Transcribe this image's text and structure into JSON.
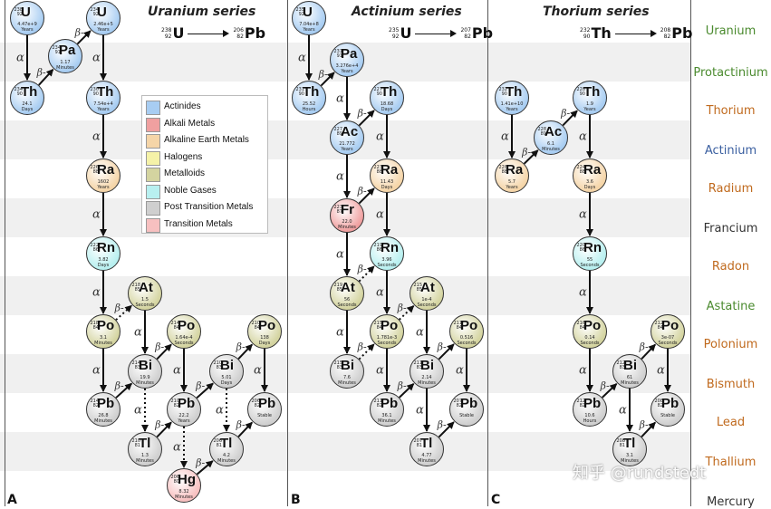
{
  "panels": [
    {
      "letter": "A",
      "title": "Uranium series",
      "eq": {
        "parent": {
          "sym": "U",
          "mass": "238",
          "num": "92"
        },
        "daughter": {
          "sym": "Pb",
          "mass": "206",
          "num": "82"
        }
      }
    },
    {
      "letter": "B",
      "title": "Actinium series",
      "eq": {
        "parent": {
          "sym": "U",
          "mass": "235",
          "num": "92"
        },
        "daughter": {
          "sym": "Pb",
          "mass": "207",
          "num": "82"
        }
      }
    },
    {
      "letter": "C",
      "title": "Thorium series",
      "eq": {
        "parent": {
          "sym": "Th",
          "mass": "232",
          "num": "90"
        },
        "daughter": {
          "sym": "Pb",
          "mass": "208",
          "num": "82"
        }
      }
    }
  ],
  "elements": [
    {
      "name": "Uranium",
      "color": "#4a8a2e"
    },
    {
      "name": "Protactinium",
      "color": "#4a8a2e"
    },
    {
      "name": "Thorium",
      "color": "#c06a1e"
    },
    {
      "name": "Actinium",
      "color": "#3a5fa0"
    },
    {
      "name": "Radium",
      "color": "#c06a1e"
    },
    {
      "name": "Francium",
      "color": "#333333"
    },
    {
      "name": "Radon",
      "color": "#c06a1e"
    },
    {
      "name": "Astatine",
      "color": "#4a8a2e"
    },
    {
      "name": "Polonium",
      "color": "#c06a1e"
    },
    {
      "name": "Bismuth",
      "color": "#c06a1e"
    },
    {
      "name": "Lead",
      "color": "#c06a1e"
    },
    {
      "name": "Thallium",
      "color": "#c06a1e"
    },
    {
      "name": "Mercury",
      "color": "#333333"
    }
  ],
  "legend": [
    {
      "label": "Actinides",
      "color": "#a8cdf2"
    },
    {
      "label": "Alkali Metals",
      "color": "#f0a0a0"
    },
    {
      "label": "Alkaline Earth Metals",
      "color": "#f5d5a8"
    },
    {
      "label": "Halogens",
      "color": "#f5f2a8"
    },
    {
      "label": "Metalloids",
      "color": "#d4d4a0"
    },
    {
      "label": "Noble Gases",
      "color": "#b8f0f0"
    },
    {
      "label": "Post Transition Metals",
      "color": "#cfcfcf"
    },
    {
      "label": "Transition Metals",
      "color": "#f7c0c0"
    }
  ],
  "nodes": [
    {
      "id": "a-u238",
      "sym": "U",
      "mass": "238",
      "num": "92",
      "hl": "4.47e+9",
      "unit": "Years",
      "cat": "Actinides"
    },
    {
      "id": "a-pa234",
      "sym": "Pa",
      "mass": "234",
      "num": "91",
      "hl": "1.17",
      "unit": "Minutes",
      "cat": "Actinides"
    },
    {
      "id": "a-u234",
      "sym": "U",
      "mass": "234",
      "num": "92",
      "hl": "2.46e+5",
      "unit": "Years",
      "cat": "Actinides"
    },
    {
      "id": "a-th234",
      "sym": "Th",
      "mass": "234",
      "num": "90",
      "hl": "24.1",
      "unit": "Days",
      "cat": "Actinides"
    },
    {
      "id": "a-th230",
      "sym": "Th",
      "mass": "230",
      "num": "90",
      "hl": "7.54e+4",
      "unit": "Years",
      "cat": "Actinides"
    },
    {
      "id": "a-ra226",
      "sym": "Ra",
      "mass": "226",
      "num": "88",
      "hl": "1602",
      "unit": "Years",
      "cat": "Alkaline Earth Metals"
    },
    {
      "id": "a-rn222",
      "sym": "Rn",
      "mass": "222",
      "num": "86",
      "hl": "3.82",
      "unit": "Days",
      "cat": "Noble Gases"
    },
    {
      "id": "a-at218",
      "sym": "At",
      "mass": "218",
      "num": "85",
      "hl": "1.5",
      "unit": "Seconds",
      "cat": "Metalloids"
    },
    {
      "id": "a-po218",
      "sym": "Po",
      "mass": "218",
      "num": "84",
      "hl": "3.1",
      "unit": "Minutes",
      "cat": "Metalloids"
    },
    {
      "id": "a-po214",
      "sym": "Po",
      "mass": "214",
      "num": "84",
      "hl": "1.64e-4",
      "unit": "Seconds",
      "cat": "Metalloids"
    },
    {
      "id": "a-po210",
      "sym": "Po",
      "mass": "210",
      "num": "84",
      "hl": "138",
      "unit": "Days",
      "cat": "Metalloids"
    },
    {
      "id": "a-bi214",
      "sym": "Bi",
      "mass": "214",
      "num": "83",
      "hl": "19.9",
      "unit": "Minutes",
      "cat": "Post Transition Metals"
    },
    {
      "id": "a-bi210",
      "sym": "Bi",
      "mass": "210",
      "num": "83",
      "hl": "5.01",
      "unit": "Days",
      "cat": "Post Transition Metals"
    },
    {
      "id": "a-pb214",
      "sym": "Pb",
      "mass": "214",
      "num": "82",
      "hl": "26.8",
      "unit": "Minutes",
      "cat": "Post Transition Metals"
    },
    {
      "id": "a-pb210",
      "sym": "Pb",
      "mass": "210",
      "num": "82",
      "hl": "22.2",
      "unit": "Years",
      "cat": "Post Transition Metals"
    },
    {
      "id": "a-pb206",
      "sym": "Pb",
      "mass": "206",
      "num": "82",
      "hl": "Stable",
      "unit": "",
      "cat": "Post Transition Metals"
    },
    {
      "id": "a-tl210",
      "sym": "Tl",
      "mass": "210",
      "num": "81",
      "hl": "1.3",
      "unit": "Minutes",
      "cat": "Post Transition Metals"
    },
    {
      "id": "a-tl206",
      "sym": "Tl",
      "mass": "206",
      "num": "81",
      "hl": "4.2",
      "unit": "Minutes",
      "cat": "Post Transition Metals"
    },
    {
      "id": "a-hg206",
      "sym": "Hg",
      "mass": "206",
      "num": "80",
      "hl": "8.32",
      "unit": "Minutes",
      "cat": "Transition Metals"
    },
    {
      "id": "b-u235",
      "sym": "U",
      "mass": "235",
      "num": "92",
      "hl": "7.04e+8",
      "unit": "Years",
      "cat": "Actinides"
    },
    {
      "id": "b-pa231",
      "sym": "Pa",
      "mass": "231",
      "num": "91",
      "hl": "3.276e+4",
      "unit": "Years",
      "cat": "Actinides"
    },
    {
      "id": "b-th231",
      "sym": "Th",
      "mass": "231",
      "num": "90",
      "hl": "25.52",
      "unit": "Hours",
      "cat": "Actinides"
    },
    {
      "id": "b-th227",
      "sym": "Th",
      "mass": "227",
      "num": "90",
      "hl": "18.68",
      "unit": "Days",
      "cat": "Actinides"
    },
    {
      "id": "b-ac227",
      "sym": "Ac",
      "mass": "227",
      "num": "89",
      "hl": "21.772",
      "unit": "Years",
      "cat": "Actinides"
    },
    {
      "id": "b-ra223",
      "sym": "Ra",
      "mass": "223",
      "num": "88",
      "hl": "11.43",
      "unit": "Days",
      "cat": "Alkaline Earth Metals"
    },
    {
      "id": "b-fr223",
      "sym": "Fr",
      "mass": "223",
      "num": "87",
      "hl": "22.0",
      "unit": "Minutes",
      "cat": "Alkali Metals"
    },
    {
      "id": "b-rn219",
      "sym": "Rn",
      "mass": "219",
      "num": "86",
      "hl": "3.96",
      "unit": "Seconds",
      "cat": "Noble Gases"
    },
    {
      "id": "b-at219",
      "sym": "At",
      "mass": "219",
      "num": "85",
      "hl": "56",
      "unit": "Seconds",
      "cat": "Metalloids"
    },
    {
      "id": "b-at215",
      "sym": "At",
      "mass": "215",
      "num": "85",
      "hl": "1e-4",
      "unit": "Seconds",
      "cat": "Metalloids"
    },
    {
      "id": "b-po215",
      "sym": "Po",
      "mass": "215",
      "num": "84",
      "hl": "1.781e-3",
      "unit": "Seconds",
      "cat": "Metalloids"
    },
    {
      "id": "b-po211",
      "sym": "Po",
      "mass": "211",
      "num": "84",
      "hl": "0.516",
      "unit": "Seconds",
      "cat": "Metalloids"
    },
    {
      "id": "b-bi215",
      "sym": "Bi",
      "mass": "215",
      "num": "83",
      "hl": "7.6",
      "unit": "Minutes",
      "cat": "Post Transition Metals"
    },
    {
      "id": "b-bi211",
      "sym": "Bi",
      "mass": "211",
      "num": "83",
      "hl": "2.14",
      "unit": "Minutes",
      "cat": "Post Transition Metals"
    },
    {
      "id": "b-pb211",
      "sym": "Pb",
      "mass": "211",
      "num": "82",
      "hl": "36.1",
      "unit": "Minutes",
      "cat": "Post Transition Metals"
    },
    {
      "id": "b-pb207",
      "sym": "Pb",
      "mass": "207",
      "num": "82",
      "hl": "Stable",
      "unit": "",
      "cat": "Post Transition Metals"
    },
    {
      "id": "b-tl207",
      "sym": "Tl",
      "mass": "207",
      "num": "81",
      "hl": "4.77",
      "unit": "Minutes",
      "cat": "Post Transition Metals"
    },
    {
      "id": "c-th232",
      "sym": "Th",
      "mass": "232",
      "num": "90",
      "hl": "1.41e+10",
      "unit": "Years",
      "cat": "Actinides"
    },
    {
      "id": "c-th228",
      "sym": "Th",
      "mass": "228",
      "num": "90",
      "hl": "1.9",
      "unit": "Years",
      "cat": "Actinides"
    },
    {
      "id": "c-ac228",
      "sym": "Ac",
      "mass": "228",
      "num": "89",
      "hl": "6.1",
      "unit": "Minutes",
      "cat": "Actinides"
    },
    {
      "id": "c-ra228",
      "sym": "Ra",
      "mass": "228",
      "num": "88",
      "hl": "5.7",
      "unit": "Years",
      "cat": "Alkaline Earth Metals"
    },
    {
      "id": "c-ra224",
      "sym": "Ra",
      "mass": "224",
      "num": "88",
      "hl": "3.6",
      "unit": "Days",
      "cat": "Alkaline Earth Metals"
    },
    {
      "id": "c-rn220",
      "sym": "Rn",
      "mass": "220",
      "num": "86",
      "hl": "55",
      "unit": "Seconds",
      "cat": "Noble Gases"
    },
    {
      "id": "c-po216",
      "sym": "Po",
      "mass": "216",
      "num": "84",
      "hl": "0.14",
      "unit": "Seconds",
      "cat": "Metalloids"
    },
    {
      "id": "c-po212",
      "sym": "Po",
      "mass": "212",
      "num": "84",
      "hl": "3e-07",
      "unit": "Seconds",
      "cat": "Metalloids"
    },
    {
      "id": "c-bi212",
      "sym": "Bi",
      "mass": "212",
      "num": "83",
      "hl": "61",
      "unit": "Minutes",
      "cat": "Post Transition Metals"
    },
    {
      "id": "c-pb212",
      "sym": "Pb",
      "mass": "212",
      "num": "82",
      "hl": "10.6",
      "unit": "Hours",
      "cat": "Post Transition Metals"
    },
    {
      "id": "c-pb208",
      "sym": "Pb",
      "mass": "208",
      "num": "82",
      "hl": "Stable",
      "unit": "",
      "cat": "Post Transition Metals"
    },
    {
      "id": "c-tl208",
      "sym": "Tl",
      "mass": "208",
      "num": "81",
      "hl": "3.1",
      "unit": "Minutes",
      "cat": "Post Transition Metals"
    }
  ],
  "edges": [
    {
      "from": "a-u238",
      "to": "a-th234",
      "label": "α"
    },
    {
      "from": "a-th234",
      "to": "a-pa234",
      "label": "β-"
    },
    {
      "from": "a-pa234",
      "to": "a-u234",
      "label": "β-"
    },
    {
      "from": "a-u234",
      "to": "a-th230",
      "label": "α"
    },
    {
      "from": "a-th230",
      "to": "a-ra226",
      "label": "α"
    },
    {
      "from": "a-ra226",
      "to": "a-rn222",
      "label": "α"
    },
    {
      "from": "a-rn222",
      "to": "a-po218",
      "label": "α"
    },
    {
      "from": "a-po218",
      "to": "a-at218",
      "label": "β-",
      "dotted": true
    },
    {
      "from": "a-po218",
      "to": "a-pb214",
      "label": "α"
    },
    {
      "from": "a-at218",
      "to": "a-bi214",
      "label": "α"
    },
    {
      "from": "a-pb214",
      "to": "a-bi214",
      "label": "β-"
    },
    {
      "from": "a-bi214",
      "to": "a-po214",
      "label": "β-"
    },
    {
      "from": "a-bi214",
      "to": "a-tl210",
      "label": "α",
      "dotted": true
    },
    {
      "from": "a-po214",
      "to": "a-pb210",
      "label": "α"
    },
    {
      "from": "a-tl210",
      "to": "a-pb210",
      "label": "β-"
    },
    {
      "from": "a-pb210",
      "to": "a-bi210",
      "label": "β-"
    },
    {
      "from": "a-pb210",
      "to": "a-hg206",
      "label": "α",
      "dotted": true
    },
    {
      "from": "a-bi210",
      "to": "a-po210",
      "label": "β-"
    },
    {
      "from": "a-bi210",
      "to": "a-tl206",
      "label": "α",
      "dotted": true
    },
    {
      "from": "a-po210",
      "to": "a-pb206",
      "label": "α"
    },
    {
      "from": "a-tl206",
      "to": "a-pb206",
      "label": "β-"
    },
    {
      "from": "a-hg206",
      "to": "a-tl206",
      "label": "β-"
    },
    {
      "from": "b-u235",
      "to": "b-th231",
      "label": "α"
    },
    {
      "from": "b-th231",
      "to": "b-pa231",
      "label": "β-"
    },
    {
      "from": "b-pa231",
      "to": "b-ac227",
      "label": "α"
    },
    {
      "from": "b-ac227",
      "to": "b-th227",
      "label": "β-"
    },
    {
      "from": "b-ac227",
      "to": "b-fr223",
      "label": "α"
    },
    {
      "from": "b-th227",
      "to": "b-ra223",
      "label": "α"
    },
    {
      "from": "b-fr223",
      "to": "b-ra223",
      "label": "β-"
    },
    {
      "from": "b-ra223",
      "to": "b-rn219",
      "label": "α"
    },
    {
      "from": "b-fr223",
      "to": "b-at219",
      "label": "α"
    },
    {
      "from": "b-at219",
      "to": "b-rn219",
      "label": "β-",
      "dotted": true
    },
    {
      "from": "b-rn219",
      "to": "b-po215",
      "label": "α"
    },
    {
      "from": "b-at219",
      "to": "b-bi215",
      "label": "α"
    },
    {
      "from": "b-bi215",
      "to": "b-po215",
      "label": "β-",
      "dotted": true
    },
    {
      "from": "b-po215",
      "to": "b-at215",
      "label": "β-",
      "dotted": true
    },
    {
      "from": "b-po215",
      "to": "b-pb211",
      "label": "α"
    },
    {
      "from": "b-at215",
      "to": "b-bi211",
      "label": "α"
    },
    {
      "from": "b-pb211",
      "to": "b-bi211",
      "label": "β-"
    },
    {
      "from": "b-bi211",
      "to": "b-po211",
      "label": "β-"
    },
    {
      "from": "b-bi211",
      "to": "b-tl207",
      "label": "α"
    },
    {
      "from": "b-po211",
      "to": "b-pb207",
      "label": "α"
    },
    {
      "from": "b-tl207",
      "to": "b-pb207",
      "label": "β-"
    },
    {
      "from": "c-th232",
      "to": "c-ra228",
      "label": "α"
    },
    {
      "from": "c-ra228",
      "to": "c-ac228",
      "label": "β-"
    },
    {
      "from": "c-ac228",
      "to": "c-th228",
      "label": "β-"
    },
    {
      "from": "c-th228",
      "to": "c-ra224",
      "label": "α"
    },
    {
      "from": "c-ra224",
      "to": "c-rn220",
      "label": "α"
    },
    {
      "from": "c-rn220",
      "to": "c-po216",
      "label": "α"
    },
    {
      "from": "c-po216",
      "to": "c-pb212",
      "label": "α"
    },
    {
      "from": "c-pb212",
      "to": "c-bi212",
      "label": "β-"
    },
    {
      "from": "c-bi212",
      "to": "c-po212",
      "label": "β-"
    },
    {
      "from": "c-bi212",
      "to": "c-tl208",
      "label": "α"
    },
    {
      "from": "c-po212",
      "to": "c-pb208",
      "label": "α"
    },
    {
      "from": "c-tl208",
      "to": "c-pb208",
      "label": "β-"
    }
  ],
  "watermark": "知乎 @rundstedt"
}
